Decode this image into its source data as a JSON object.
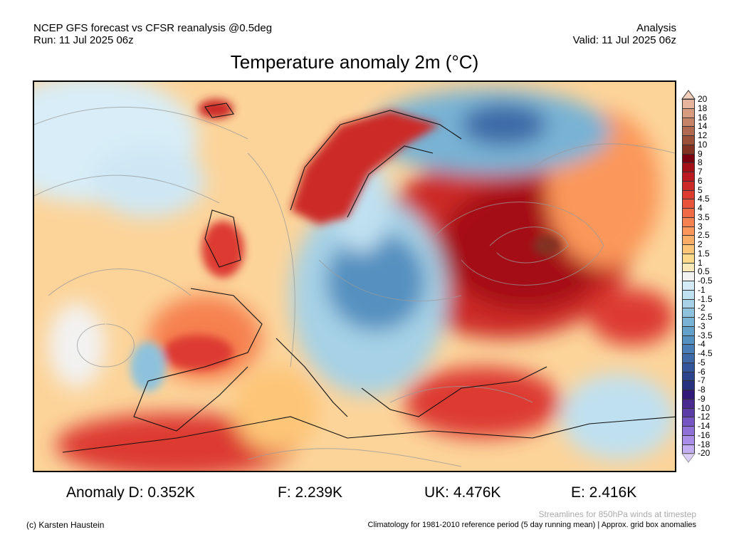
{
  "header": {
    "model_line": "NCEP GFS forecast vs CFSR reanalysis @0.5deg",
    "run_line": "Run: 11 Jul 2025 06z",
    "type": "Analysis",
    "valid_line": "Valid: 11 Jul 2025 06z"
  },
  "title": "Temperature anomaly 2m (°C)",
  "stats": {
    "d": "Anomaly D: 0.352K",
    "f": "F: 2.239K",
    "uk": "UK: 4.476K",
    "e": "E: 2.416K"
  },
  "footer": {
    "credit": "(c) Karsten Haustein",
    "streamlines": "Streamlines for 850hPa winds at timestep",
    "climatology": "Climatology for 1981-2010 reference period (5 day running mean) | Approx. grid box anomalies"
  },
  "colorbar": {
    "labels": [
      "20",
      "18",
      "16",
      "14",
      "12",
      "10",
      "9",
      "8",
      "7",
      "6",
      "5",
      "4.5",
      "4",
      "3.5",
      "3",
      "2.5",
      "2",
      "1.5",
      "1",
      "0.5",
      "-0.5",
      "-1",
      "-1.5",
      "-2",
      "-2.5",
      "-3",
      "-3.5",
      "-4",
      "-4.5",
      "-5",
      "-6",
      "-7",
      "-8",
      "-9",
      "-10",
      "-12",
      "-14",
      "-16",
      "-18",
      "-20"
    ],
    "colors": [
      "#f3cdbb",
      "#e6b39c",
      "#d79b80",
      "#c58467",
      "#b06a4f",
      "#9a5138",
      "#823220",
      "#7a0010",
      "#a50f18",
      "#bb1a20",
      "#cc2a28",
      "#dd3a30",
      "#e8533b",
      "#f06a45",
      "#f68150",
      "#fb975a",
      "#fdae66",
      "#fdc577",
      "#fdd98c",
      "#f9e8ba",
      "#f2f2f2",
      "#d4ebf7",
      "#bfe0f0",
      "#a6d1e6",
      "#8ec2dc",
      "#78b2d4",
      "#64a1ca",
      "#5490c0",
      "#487eb5",
      "#3d6aa7",
      "#33569a",
      "#2c448c",
      "#27337e",
      "#31197a",
      "#4a2a8f",
      "#5c3ca6",
      "#7656c2",
      "#8f70d6",
      "#a98de6",
      "#c2aef0",
      "#d9cff8"
    ]
  }
}
